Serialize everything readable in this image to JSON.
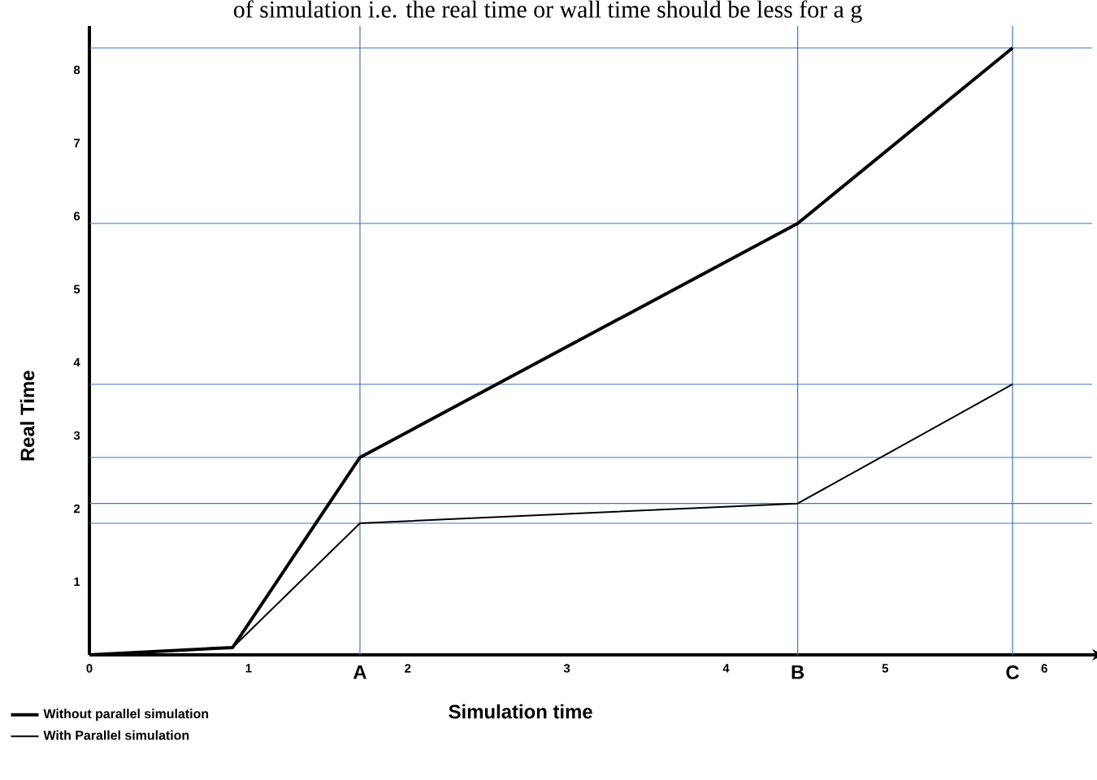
{
  "chart_data": {
    "type": "line",
    "xlabel": "Simulation time",
    "ylabel": "Real Time",
    "annotations": [
      "of simulation i.e. the real time or wall time should be less for a g"
    ],
    "x": [
      0,
      0.9,
      1.7,
      4.45,
      5.8
    ],
    "series": [
      {
        "name": "Without parallel simulation",
        "color": "#000000",
        "values": [
          0,
          0.1,
          2.7,
          5.9,
          8.3
        ]
      },
      {
        "name": "With Parallel simulation",
        "color": "#000000",
        "values": [
          0,
          0.1,
          1.8,
          2.07,
          3.7
        ]
      }
    ],
    "xlim": [
      0,
      6.3
    ],
    "ylim": [
      0,
      8.6
    ],
    "xticks": [
      0,
      1,
      2,
      3,
      4,
      5,
      6
    ],
    "yticks": [
      1,
      2,
      3,
      4,
      5,
      6,
      7,
      8
    ],
    "ref_lines": [
      {
        "axis": "x",
        "value": 1.7,
        "label": "A",
        "color": "#4472c4"
      },
      {
        "axis": "x",
        "value": 4.45,
        "label": "B",
        "color": "#4472c4"
      },
      {
        "axis": "x",
        "value": 5.8,
        "label": "C",
        "color": "#4472c4"
      },
      {
        "axis": "y",
        "value": 8.3,
        "color": "#4472c4"
      },
      {
        "axis": "y",
        "value": 5.9,
        "color": "#4472c4"
      },
      {
        "axis": "y",
        "value": 3.7,
        "color": "#4472c4"
      },
      {
        "axis": "y",
        "value": 2.7,
        "color": "#4472c4"
      },
      {
        "axis": "y",
        "value": 2.07,
        "color": "#4472c4"
      },
      {
        "axis": "y",
        "value": 1.8,
        "color": "#4472c4"
      }
    ],
    "grid": false,
    "legend": "bottom left",
    "marker": "none",
    "line_style": "solid"
  }
}
